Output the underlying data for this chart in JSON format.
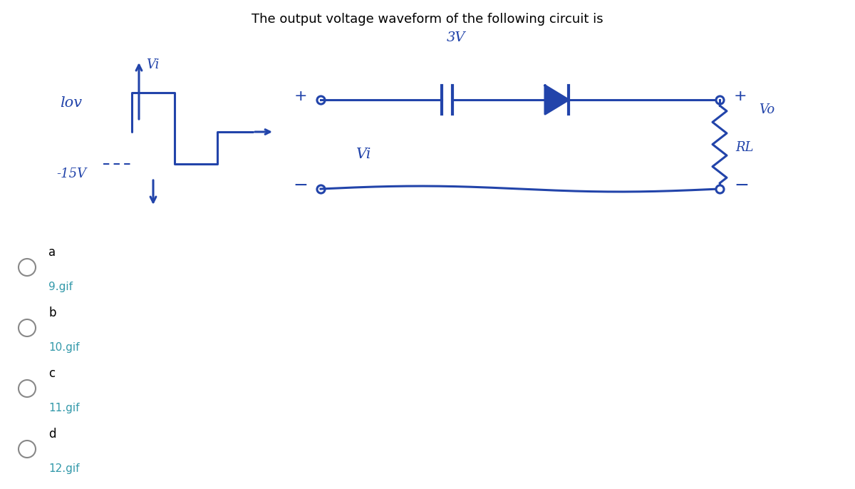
{
  "title": "The output voltage waveform of the following circuit is",
  "title_fontsize": 13,
  "bg_color": "#ffffff",
  "draw_color": "#2244aa",
  "text_color": "#000000",
  "gif_color": "#3399aa",
  "options": [
    "a",
    "b",
    "c",
    "d"
  ],
  "option_labels": [
    "9.gif",
    "10.gif",
    "11.gif",
    "12.gif"
  ],
  "waveform_label": "lov",
  "waveform_neg_label": "-15V",
  "vi_label": "Vi",
  "circuit_3v_label": "3V",
  "circuit_vi_label": "Vi",
  "circuit_rl_label": "RL",
  "circuit_vo_label": "Vo"
}
